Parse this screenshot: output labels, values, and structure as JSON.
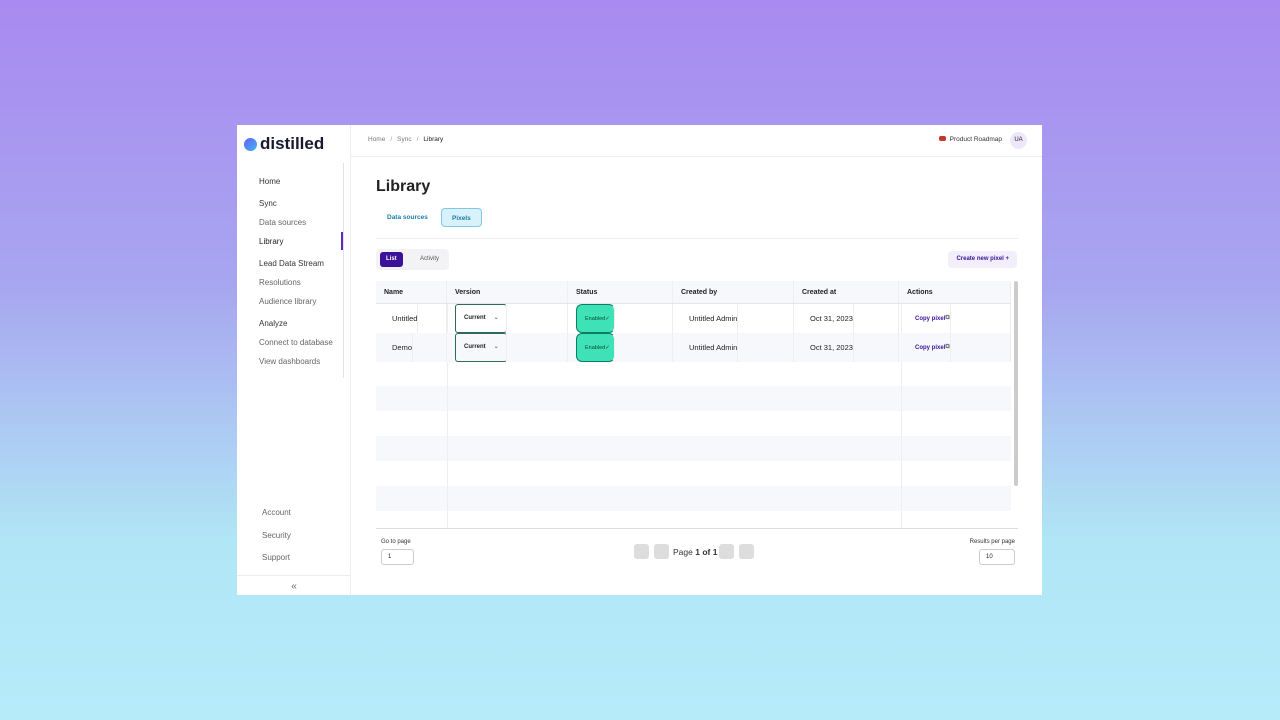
{
  "sidebar": {
    "logo": "distilled",
    "nav": [
      {
        "label": "Home"
      },
      {
        "label": "Sync",
        "children": [
          "Data sources",
          "Library"
        ]
      },
      {
        "label": "Lead Data Stream",
        "children": [
          "Resolutions",
          "Audience library"
        ]
      },
      {
        "label": "Analyze",
        "children": [
          "Connect to database",
          "View dashboards"
        ]
      }
    ],
    "bottom": [
      "Account",
      "Security",
      "Support"
    ]
  },
  "topbar": {
    "breadcrumb": [
      "Home",
      "Sync",
      "Library"
    ],
    "workspace": "Product Roadmap",
    "avatar": "UA"
  },
  "page": {
    "title": "Library",
    "tabs": [
      "Data sources",
      "Pixels"
    ],
    "subtabs": [
      "List",
      "Activity"
    ],
    "create_button": "Create new pixel +"
  },
  "table": {
    "columns": [
      "Name",
      "Version",
      "Status",
      "Created by",
      "Created at",
      "Actions"
    ],
    "rows": [
      [
        "Untitled",
        "Current",
        "Enabled",
        "Untitled Admin",
        "Oct 31, 2023",
        "Copy pixel"
      ],
      [
        "Demo",
        "Current",
        "Enabled",
        "Untitled Admin",
        "Oct 31, 2023",
        "Copy pixel"
      ]
    ]
  },
  "pagination": {
    "go_to_label": "Go to page",
    "go_to_value": "1",
    "page_label": "Page",
    "current_page": "1",
    "of_label": "of",
    "total_pages": "1",
    "per_page_label": "Results per page",
    "per_page_value": "10"
  }
}
